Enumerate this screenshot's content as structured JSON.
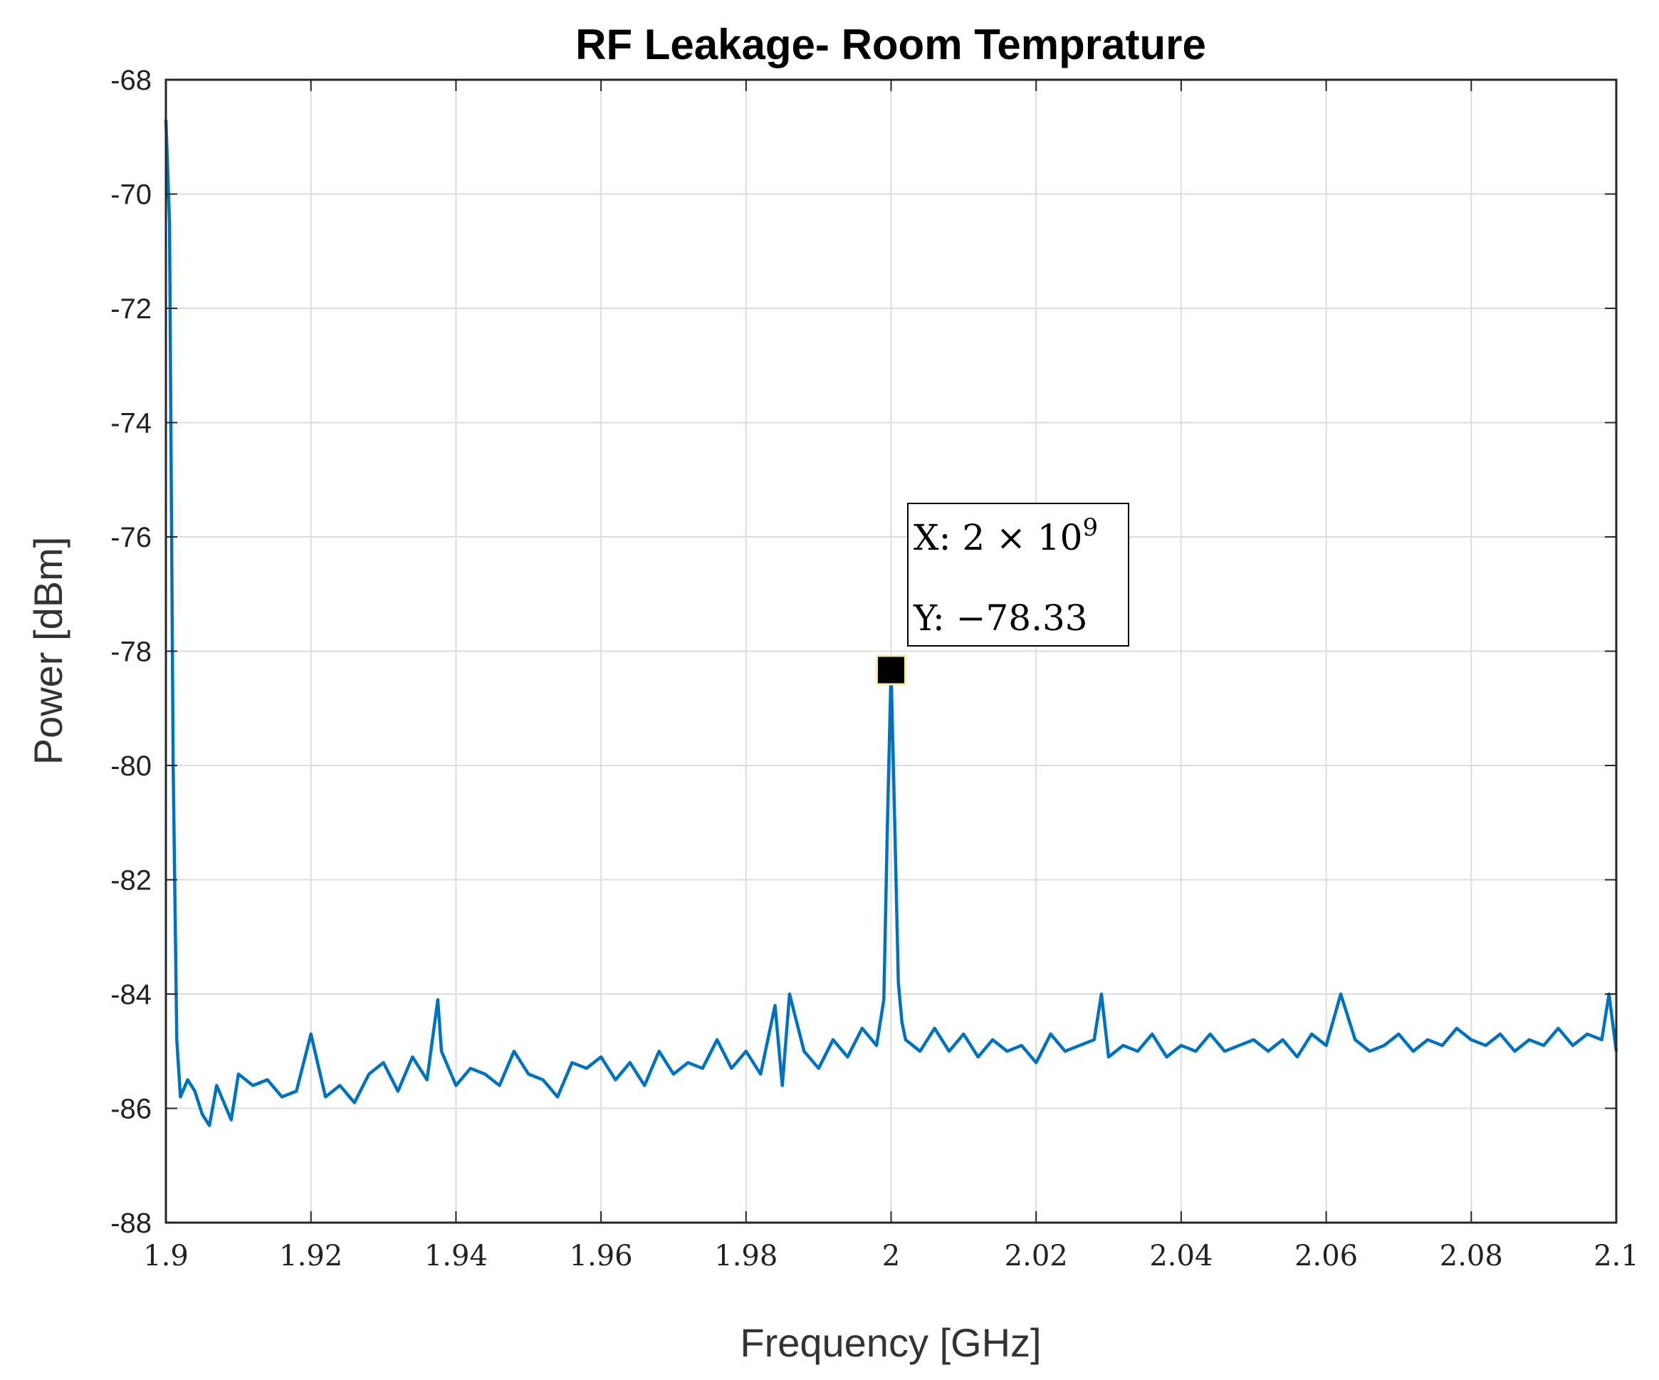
{
  "chart_data": {
    "type": "line",
    "title": "RF Leakage- Room Temprature",
    "xlabel": "Frequency [GHz]",
    "ylabel": "Power [dBm]",
    "xlim": [
      1.9,
      2.1
    ],
    "ylim": [
      -88,
      -68
    ],
    "xticks": [
      1.9,
      1.92,
      1.94,
      1.96,
      1.98,
      2,
      2.02,
      2.04,
      2.06,
      2.08,
      2.1
    ],
    "xtick_labels": [
      "1.9",
      "1.92",
      "1.94",
      "1.96",
      "1.98",
      "2",
      "2.02",
      "2.04",
      "2.06",
      "2.08",
      "2.1"
    ],
    "yticks": [
      -68,
      -70,
      -72,
      -74,
      -76,
      -78,
      -80,
      -82,
      -84,
      -86,
      -88
    ],
    "ytick_labels": [
      "-68",
      "-70",
      "-72",
      "-74",
      "-76",
      "-78",
      "-80",
      "-82",
      "-84",
      "-86",
      "-88"
    ],
    "grid": true,
    "series": [
      {
        "color": "#0072BD",
        "x": [
          1.9,
          1.9005,
          1.901,
          1.9015,
          1.902,
          1.903,
          1.904,
          1.905,
          1.906,
          1.907,
          1.908,
          1.909,
          1.91,
          1.912,
          1.914,
          1.916,
          1.918,
          1.92,
          1.922,
          1.924,
          1.926,
          1.928,
          1.93,
          1.932,
          1.934,
          1.936,
          1.9375,
          1.938,
          1.94,
          1.942,
          1.944,
          1.946,
          1.948,
          1.95,
          1.952,
          1.954,
          1.956,
          1.958,
          1.96,
          1.962,
          1.964,
          1.966,
          1.968,
          1.97,
          1.972,
          1.974,
          1.976,
          1.978,
          1.98,
          1.982,
          1.984,
          1.985,
          1.986,
          1.988,
          1.99,
          1.992,
          1.994,
          1.996,
          1.998,
          1.999,
          1.9995,
          2.0,
          2.0005,
          2.001,
          2.0015,
          2.002,
          2.004,
          2.006,
          2.008,
          2.01,
          2.012,
          2.014,
          2.016,
          2.018,
          2.02,
          2.022,
          2.024,
          2.026,
          2.028,
          2.029,
          2.03,
          2.032,
          2.034,
          2.036,
          2.038,
          2.04,
          2.042,
          2.044,
          2.046,
          2.048,
          2.05,
          2.052,
          2.054,
          2.056,
          2.058,
          2.06,
          2.062,
          2.064,
          2.066,
          2.068,
          2.07,
          2.072,
          2.074,
          2.076,
          2.078,
          2.08,
          2.082,
          2.084,
          2.086,
          2.088,
          2.09,
          2.092,
          2.094,
          2.096,
          2.098,
          2.099,
          2.1
        ],
        "y": [
          -68.7,
          -70.5,
          -80.0,
          -84.8,
          -85.8,
          -85.5,
          -85.7,
          -86.1,
          -86.3,
          -85.6,
          -85.9,
          -86.2,
          -85.4,
          -85.6,
          -85.5,
          -85.8,
          -85.7,
          -84.7,
          -85.8,
          -85.6,
          -85.9,
          -85.4,
          -85.2,
          -85.7,
          -85.1,
          -85.5,
          -84.1,
          -85.0,
          -85.6,
          -85.3,
          -85.4,
          -85.6,
          -85.0,
          -85.4,
          -85.5,
          -85.8,
          -85.2,
          -85.3,
          -85.1,
          -85.5,
          -85.2,
          -85.6,
          -85.0,
          -85.4,
          -85.2,
          -85.3,
          -84.8,
          -85.3,
          -85.0,
          -85.4,
          -84.2,
          -85.6,
          -84.0,
          -85.0,
          -85.3,
          -84.8,
          -85.1,
          -84.6,
          -84.9,
          -84.1,
          -81.0,
          -78.33,
          -81.0,
          -83.8,
          -84.5,
          -84.8,
          -85.0,
          -84.6,
          -85.0,
          -84.7,
          -85.1,
          -84.8,
          -85.0,
          -84.9,
          -85.2,
          -84.7,
          -85.0,
          -84.9,
          -84.8,
          -84.0,
          -85.1,
          -84.9,
          -85.0,
          -84.7,
          -85.1,
          -84.9,
          -85.0,
          -84.7,
          -85.0,
          -84.9,
          -84.8,
          -85.0,
          -84.8,
          -85.1,
          -84.7,
          -84.9,
          -84.0,
          -84.8,
          -85.0,
          -84.9,
          -84.7,
          -85.0,
          -84.8,
          -84.9,
          -84.6,
          -84.8,
          -84.9,
          -84.7,
          -85.0,
          -84.8,
          -84.9,
          -84.6,
          -84.9,
          -84.7,
          -84.8,
          -84.0,
          -85.0
        ]
      }
    ],
    "datatip": {
      "x": 2.0,
      "y": -78.33,
      "x_text": "X: 2 × 10",
      "x_exponent": "9",
      "y_text": "Y: −78.33"
    }
  }
}
